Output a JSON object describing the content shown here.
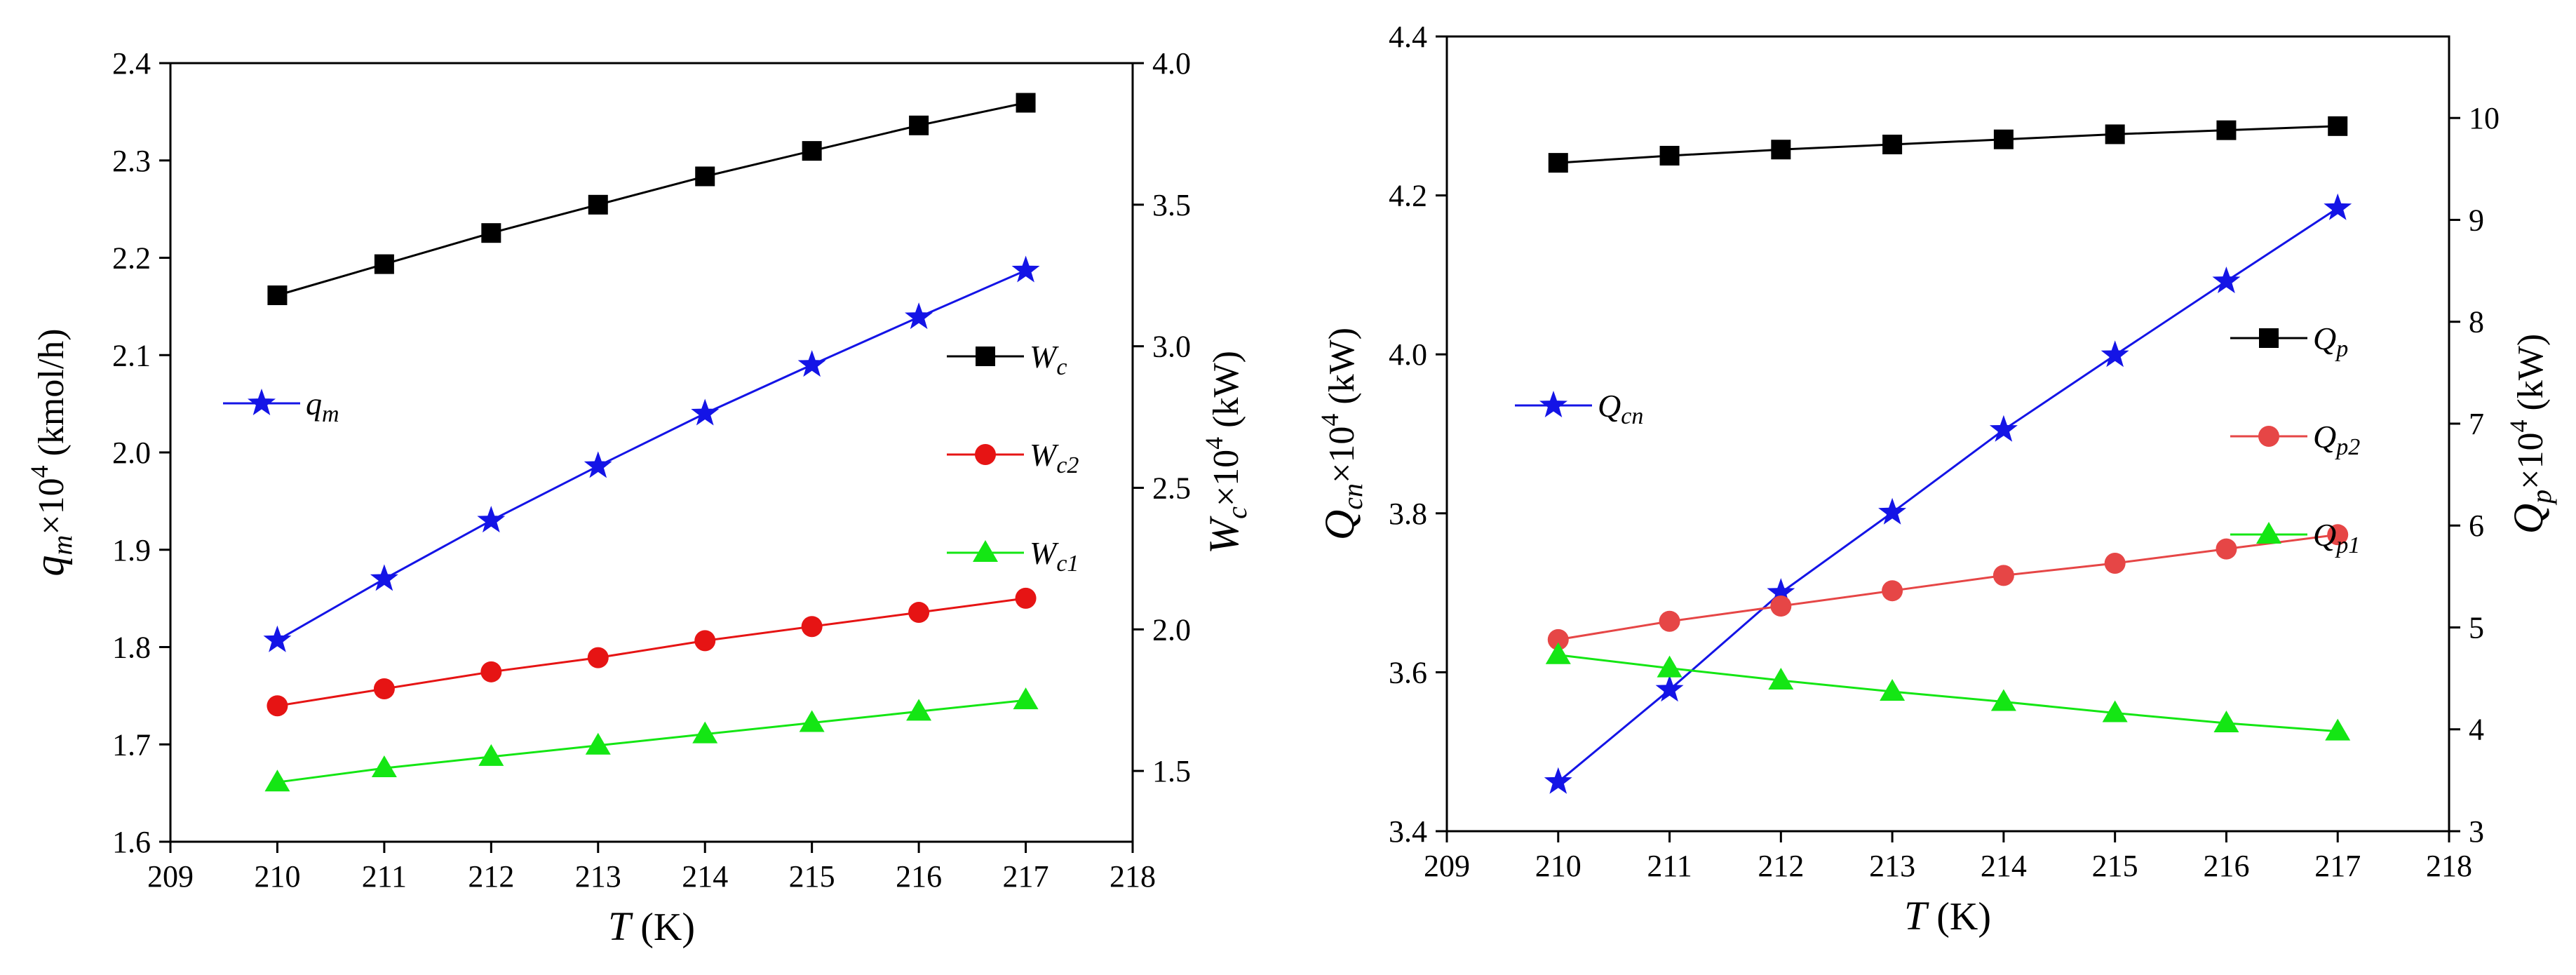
{
  "chart_data": [
    {
      "type": "line",
      "x": [
        210,
        211,
        212,
        213,
        214,
        215,
        216,
        217
      ],
      "xlim": [
        209,
        218
      ],
      "xticks": [
        209,
        210,
        211,
        212,
        213,
        214,
        215,
        216,
        217,
        218
      ],
      "xlabel": {
        "symbol": "T",
        "unit": " (K)"
      },
      "left_axis": {
        "ylim": [
          1.6,
          2.4
        ],
        "ticks": [
          "1.6",
          "1.7",
          "1.8",
          "1.9",
          "2.0",
          "2.1",
          "2.2",
          "2.3",
          "2.4"
        ],
        "label": {
          "var": "q",
          "sub": "m",
          "mid": "×10",
          "sup": "4",
          "unit": " (kmol/h)"
        }
      },
      "right_axis": {
        "ylim": [
          1.25,
          4.0
        ],
        "ticks": [
          "1.5",
          "2.0",
          "2.5",
          "3.0",
          "3.5",
          "4.0"
        ],
        "label": {
          "var": "W",
          "sub": "c",
          "mid": "×10",
          "sup": "4",
          "unit": " (kW)"
        }
      },
      "series": [
        {
          "name": "q_m",
          "symbol": "q",
          "sub": "m",
          "axis": "left",
          "color": "#1414e6",
          "marker": "star",
          "values": [
            1.807,
            1.87,
            1.93,
            1.986,
            2.04,
            2.09,
            2.139,
            2.187
          ]
        },
        {
          "name": "W_c",
          "symbol": "W",
          "sub": "c",
          "axis": "right",
          "color": "#000000",
          "marker": "square",
          "values": [
            3.18,
            3.29,
            3.4,
            3.5,
            3.6,
            3.69,
            3.78,
            3.86
          ]
        },
        {
          "name": "W_c2",
          "symbol": "W",
          "sub": "c2",
          "axis": "right",
          "color": "#e61414",
          "marker": "circle",
          "values": [
            1.73,
            1.79,
            1.85,
            1.9,
            1.96,
            2.01,
            2.06,
            2.11
          ]
        },
        {
          "name": "W_c1",
          "symbol": "W",
          "sub": "c1",
          "axis": "right",
          "color": "#14e614",
          "marker": "triangle",
          "values": [
            1.46,
            1.51,
            1.55,
            1.59,
            1.63,
            1.67,
            1.71,
            1.75
          ]
        }
      ],
      "legend": {
        "placement": "right-middle (W series), left-middle (q_m)"
      }
    },
    {
      "type": "line",
      "x": [
        210,
        211,
        212,
        213,
        214,
        215,
        216,
        217
      ],
      "xlim": [
        209,
        218
      ],
      "xticks": [
        209,
        210,
        211,
        212,
        213,
        214,
        215,
        216,
        217,
        218
      ],
      "xlabel": {
        "symbol": "T",
        "unit": " (K)"
      },
      "left_axis": {
        "ylim": [
          3.4,
          4.4
        ],
        "ticks": [
          "3.4",
          "3.6",
          "3.8",
          "4.0",
          "4.2",
          "4.4"
        ],
        "label": {
          "var": "Q",
          "sub": "cn",
          "mid": "×10",
          "sup": "4",
          "unit": " (kW)"
        }
      },
      "right_axis": {
        "ylim": [
          3,
          10.8
        ],
        "ticks": [
          "3",
          "4",
          "5",
          "6",
          "7",
          "8",
          "9",
          "10"
        ],
        "label": {
          "var": "Q",
          "sub": "p",
          "mid": "×10",
          "sup": "4",
          "unit": " (kW)"
        }
      },
      "series": [
        {
          "name": "Q_cn",
          "symbol": "Q",
          "sub": "cn",
          "axis": "left",
          "color": "#1414e6",
          "marker": "star",
          "values": [
            3.462,
            3.578,
            3.7,
            3.801,
            3.905,
            3.999,
            4.092,
            4.184
          ]
        },
        {
          "name": "Q_p",
          "symbol": "Q",
          "sub": "p",
          "axis": "right",
          "color": "#000000",
          "marker": "square",
          "values": [
            9.56,
            9.63,
            9.69,
            9.74,
            9.79,
            9.84,
            9.88,
            9.92
          ]
        },
        {
          "name": "Q_p2",
          "symbol": "Q",
          "sub": "p2",
          "axis": "right",
          "color": "#e64646",
          "marker": "circle",
          "values": [
            4.88,
            5.06,
            5.21,
            5.36,
            5.51,
            5.63,
            5.77,
            5.91
          ]
        },
        {
          "name": "Q_p1",
          "symbol": "Q",
          "sub": "p1",
          "axis": "right",
          "color": "#14e614",
          "marker": "triangle",
          "values": [
            4.73,
            4.6,
            4.48,
            4.37,
            4.27,
            4.16,
            4.06,
            3.98
          ]
        }
      ],
      "legend": {
        "placement": "right-middle (Q_p series), left-middle (Q_cn)"
      }
    }
  ]
}
